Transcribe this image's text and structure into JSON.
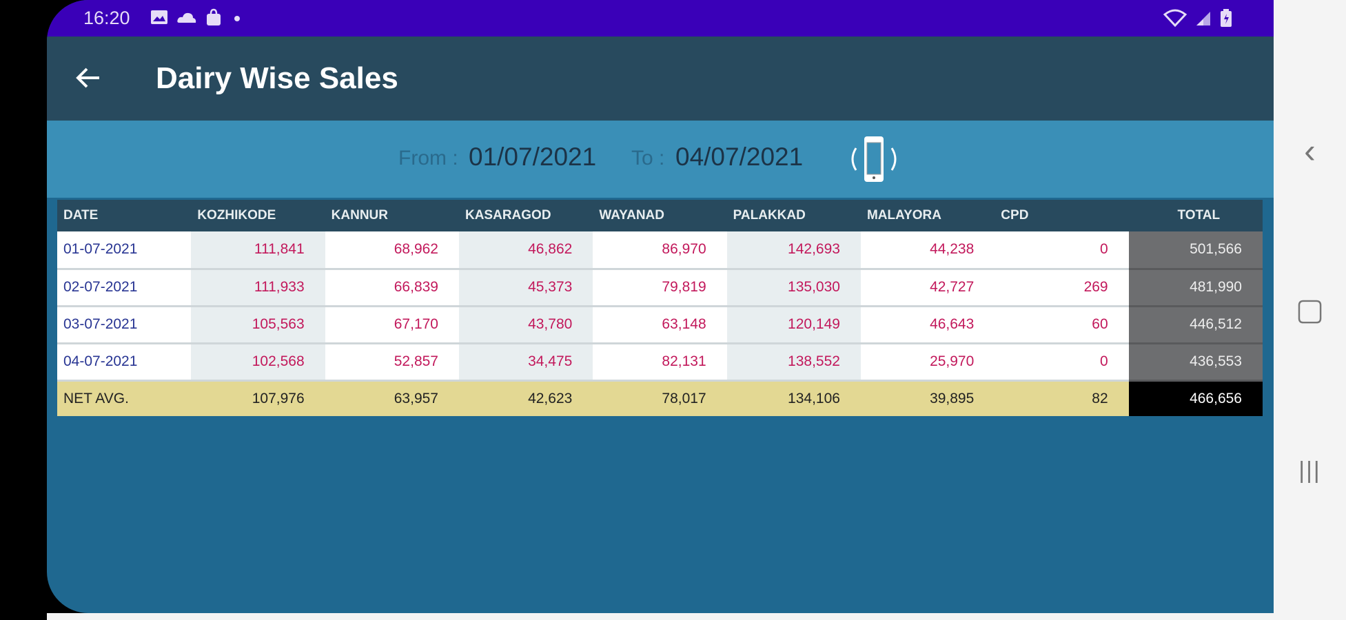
{
  "status_bar": {
    "time": "16:20",
    "icons": [
      "gallery-icon",
      "cloud-icon",
      "shopping-bag-icon",
      "dot-icon",
      "wifi-icon",
      "signal-icon",
      "battery-icon"
    ],
    "color": "#3a00b8"
  },
  "app_bar": {
    "title": "Dairy Wise Sales",
    "back_icon": "arrow-left-icon"
  },
  "date_range": {
    "from_label": "From :",
    "from_value": "01/07/2021",
    "to_label": "To :",
    "to_value": "04/07/2021",
    "rotate_icon": "screen-rotate-icon"
  },
  "table": {
    "headers": [
      "DATE",
      "KOZHIKODE",
      "KANNUR",
      "KASARAGOD",
      "WAYANAD",
      "PALAKKAD",
      "MALAYORA",
      "CPD",
      "TOTAL"
    ],
    "rows": [
      [
        "01-07-2021",
        "111,841",
        "68,962",
        "46,862",
        "86,970",
        "142,693",
        "44,238",
        "0",
        "501,566"
      ],
      [
        "02-07-2021",
        "111,933",
        "66,839",
        "45,373",
        "79,819",
        "135,030",
        "42,727",
        "269",
        "481,990"
      ],
      [
        "03-07-2021",
        "105,563",
        "67,170",
        "43,780",
        "63,148",
        "120,149",
        "46,643",
        "60",
        "446,512"
      ],
      [
        "04-07-2021",
        "102,568",
        "52,857",
        "34,475",
        "82,131",
        "138,552",
        "25,970",
        "0",
        "436,553"
      ]
    ],
    "average": [
      "NET AVG.",
      "107,976",
      "63,957",
      "42,623",
      "78,017",
      "134,106",
      "39,895",
      "82",
      "466,656"
    ]
  },
  "nav_bar": {
    "back": "‹",
    "home": "▢",
    "recents": "|||"
  }
}
